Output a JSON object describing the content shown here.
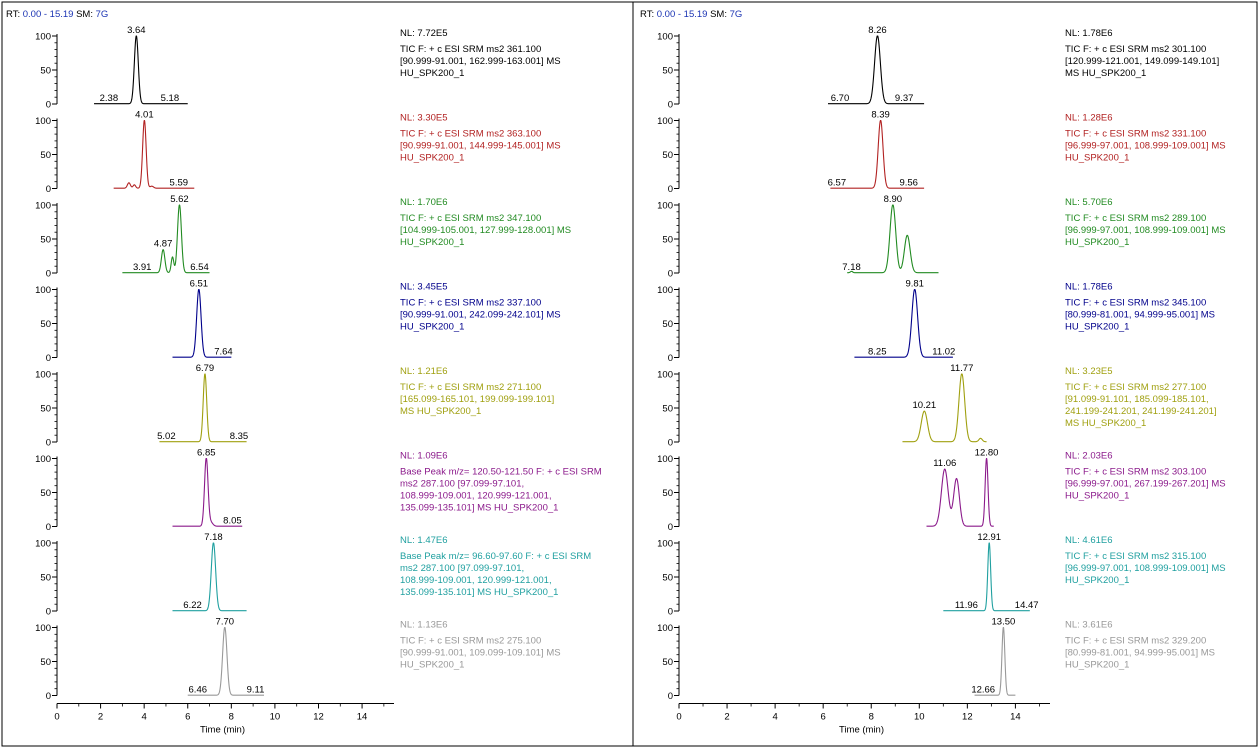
{
  "chart_data": [
    {
      "type": "line",
      "header": {
        "rt_label": "RT:",
        "rt_value": "0.00 - 15.19",
        "sm_label": "SM:",
        "sm_value": "7G"
      },
      "xlabel": "Time (min)",
      "xlim": [
        0,
        15.19
      ],
      "x_ticks": [
        "0",
        "2",
        "4",
        "6",
        "8",
        "10",
        "12",
        "14"
      ],
      "y_ticks": [
        "0",
        "50",
        "100"
      ],
      "ylim": [
        0,
        100
      ],
      "traces": [
        {
          "color": "#000000",
          "nl": "NL: 7.72E5",
          "info": [
            "TIC F: + c ESI SRM ms2 361.100",
            "[90.999-91.001, 162.999-163.001]  MS",
            "HU_SPK200_1"
          ],
          "range": [
            1.7,
            6.0
          ],
          "peaks": [
            {
              "rt": 3.64,
              "h": 100,
              "w": 0.09
            }
          ],
          "labels": [
            {
              "rt": 3.64,
              "text": "3.64"
            },
            {
              "rt": 2.38,
              "text": "2.38",
              "baseline": true
            },
            {
              "rt": 5.18,
              "text": "5.18",
              "baseline": true
            }
          ]
        },
        {
          "color": "#b22222",
          "nl": "NL: 3.30E5",
          "info": [
            "TIC F: + c ESI SRM ms2 363.100",
            "[90.999-91.001, 144.999-145.001]  MS",
            "HU_SPK200_1"
          ],
          "range": [
            2.6,
            6.3
          ],
          "peaks": [
            {
              "rt": 3.3,
              "h": 8,
              "w": 0.07
            },
            {
              "rt": 3.55,
              "h": 5,
              "w": 0.06
            },
            {
              "rt": 4.01,
              "h": 100,
              "w": 0.08
            },
            {
              "rt": 4.35,
              "h": 3,
              "w": 0.08
            }
          ],
          "labels": [
            {
              "rt": 4.01,
              "text": "4.01"
            },
            {
              "rt": 5.59,
              "text": "5.59",
              "baseline": true
            }
          ]
        },
        {
          "color": "#228b22",
          "nl": "NL: 1.70E6",
          "info": [
            "TIC F: + c ESI SRM ms2 347.100",
            "[104.999-105.001, 127.999-128.001]  MS",
            "HU_SPK200_1"
          ],
          "range": [
            3.0,
            7.0
          ],
          "peaks": [
            {
              "rt": 4.87,
              "h": 34,
              "w": 0.08
            },
            {
              "rt": 5.3,
              "h": 23,
              "w": 0.06
            },
            {
              "rt": 5.62,
              "h": 100,
              "w": 0.09
            }
          ],
          "labels": [
            {
              "rt": 5.62,
              "text": "5.62"
            },
            {
              "rt": 4.87,
              "text": "4.87"
            },
            {
              "rt": 3.91,
              "text": "3.91",
              "baseline": true
            },
            {
              "rt": 6.54,
              "text": "6.54",
              "baseline": true
            }
          ]
        },
        {
          "color": "#00008b",
          "nl": "NL: 3.45E5",
          "info": [
            "TIC F: + c ESI SRM ms2 337.100",
            "[90.999-91.001, 242.099-242.101]  MS",
            "HU_SPK200_1"
          ],
          "range": [
            5.3,
            8.0
          ],
          "peaks": [
            {
              "rt": 6.51,
              "h": 100,
              "w": 0.1
            }
          ],
          "labels": [
            {
              "rt": 6.51,
              "text": "6.51"
            },
            {
              "rt": 7.64,
              "text": "7.64",
              "baseline": true
            }
          ]
        },
        {
          "color": "#a0a010",
          "nl": "NL: 1.21E6",
          "info": [
            "TIC F: + c ESI SRM ms2 271.100",
            "[165.099-165.101, 199.099-199.101]",
            "MS HU_SPK200_1"
          ],
          "range": [
            4.7,
            8.7
          ],
          "peaks": [
            {
              "rt": 6.79,
              "h": 100,
              "w": 0.08
            }
          ],
          "labels": [
            {
              "rt": 6.79,
              "text": "6.79"
            },
            {
              "rt": 5.02,
              "text": "5.02",
              "baseline": true
            },
            {
              "rt": 8.35,
              "text": "8.35",
              "baseline": true
            }
          ]
        },
        {
          "color": "#8b1a8b",
          "nl": "NL: 1.09E6",
          "info": [
            "Base Peak m/z= 120.50-121.50 F: + c ESI SRM",
            "ms2 287.100 [97.099-97.101,",
            "108.999-109.001, 120.999-121.001,",
            "135.099-135.101]  MS HU_SPK200_1"
          ],
          "range": [
            5.3,
            8.5
          ],
          "peaks": [
            {
              "rt": 6.85,
              "h": 100,
              "w": 0.08
            },
            {
              "rt": 7.05,
              "h": 6,
              "w": 0.1
            }
          ],
          "labels": [
            {
              "rt": 6.85,
              "text": "6.85"
            },
            {
              "rt": 8.05,
              "text": "8.05",
              "baseline": true
            }
          ]
        },
        {
          "color": "#20a0a0",
          "nl": "NL: 1.47E6",
          "info": [
            "Base Peak m/z= 96.60-97.60 F: + c ESI SRM",
            "ms2 287.100 [97.099-97.101,",
            "108.999-109.001, 120.999-121.001,",
            "135.099-135.101]  MS HU_SPK200_1"
          ],
          "range": [
            5.3,
            8.7
          ],
          "peaks": [
            {
              "rt": 7.18,
              "h": 100,
              "w": 0.1
            }
          ],
          "labels": [
            {
              "rt": 7.18,
              "text": "7.18"
            },
            {
              "rt": 6.22,
              "text": "6.22",
              "baseline": true
            }
          ]
        },
        {
          "color": "#999999",
          "nl": "NL: 1.13E6",
          "info": [
            "TIC F: + c ESI SRM ms2 275.100",
            "[90.999-91.001, 109.099-109.101]  MS",
            "HU_SPK200_1"
          ],
          "range": [
            6.0,
            9.5
          ],
          "peaks": [
            {
              "rt": 7.7,
              "h": 100,
              "w": 0.1
            }
          ],
          "labels": [
            {
              "rt": 7.7,
              "text": "7.70"
            },
            {
              "rt": 6.46,
              "text": "6.46",
              "baseline": true
            },
            {
              "rt": 9.11,
              "text": "9.11",
              "baseline": true
            }
          ]
        }
      ]
    },
    {
      "type": "line",
      "header": {
        "rt_label": "RT:",
        "rt_value": "0.00 - 15.19",
        "sm_label": "SM:",
        "sm_value": "7G"
      },
      "xlabel": "Time (min)",
      "xlim": [
        0,
        15.19
      ],
      "x_ticks": [
        "0",
        "2",
        "4",
        "6",
        "8",
        "10",
        "12",
        "14"
      ],
      "y_ticks": [
        "0",
        "50",
        "100"
      ],
      "ylim": [
        0,
        100
      ],
      "traces": [
        {
          "color": "#000000",
          "nl": "NL: 1.78E6",
          "info": [
            "TIC F: + c ESI SRM ms2 301.100",
            "[120.999-121.001, 149.099-149.101]",
            "MS HU_SPK200_1"
          ],
          "range": [
            6.2,
            10.2
          ],
          "peaks": [
            {
              "rt": 8.26,
              "h": 100,
              "w": 0.12
            }
          ],
          "labels": [
            {
              "rt": 8.26,
              "text": "8.26"
            },
            {
              "rt": 6.7,
              "text": "6.70",
              "baseline": true
            },
            {
              "rt": 9.37,
              "text": "9.37",
              "baseline": true
            }
          ]
        },
        {
          "color": "#b22222",
          "nl": "NL: 1.28E6",
          "info": [
            "TIC F: + c ESI SRM ms2 331.100",
            "[96.999-97.001, 108.999-109.001]  MS",
            "HU_SPK200_1"
          ],
          "range": [
            6.3,
            10.2
          ],
          "peaks": [
            {
              "rt": 8.39,
              "h": 100,
              "w": 0.1
            }
          ],
          "labels": [
            {
              "rt": 8.39,
              "text": "8.39"
            },
            {
              "rt": 6.57,
              "text": "6.57",
              "baseline": true
            },
            {
              "rt": 9.56,
              "text": "9.56",
              "baseline": true
            }
          ]
        },
        {
          "color": "#228b22",
          "nl": "NL: 5.70E6",
          "info": [
            "TIC F: + c ESI SRM ms2 289.100",
            "[96.999-97.001, 108.999-109.001]  MS",
            "HU_SPK200_1"
          ],
          "range": [
            7.0,
            10.8
          ],
          "peaks": [
            {
              "rt": 8.9,
              "h": 100,
              "w": 0.12
            },
            {
              "rt": 9.5,
              "h": 55,
              "w": 0.12
            },
            {
              "rt": 7.18,
              "h": 2,
              "w": 0.05
            }
          ],
          "labels": [
            {
              "rt": 8.9,
              "text": "8.90"
            },
            {
              "rt": 7.18,
              "text": "7.18",
              "baseline": true
            }
          ]
        },
        {
          "color": "#00008b",
          "nl": "NL: 1.78E6",
          "info": [
            "TIC F: + c ESI SRM ms2 345.100",
            "[80.999-81.001, 94.999-95.001]  MS",
            "HU_SPK200_1"
          ],
          "range": [
            7.3,
            11.4
          ],
          "peaks": [
            {
              "rt": 9.81,
              "h": 100,
              "w": 0.12
            }
          ],
          "labels": [
            {
              "rt": 9.81,
              "text": "9.81"
            },
            {
              "rt": 8.25,
              "text": "8.25",
              "baseline": true
            },
            {
              "rt": 11.02,
              "text": "11.02",
              "baseline": true
            }
          ]
        },
        {
          "color": "#a0a010",
          "nl": "NL: 3.23E5",
          "info": [
            "TIC F: + c ESI SRM ms2 277.100",
            "[91.099-91.101, 185.099-185.101,",
            "241.199-241.201, 241.199-241.201]",
            "MS HU_SPK200_1"
          ],
          "range": [
            9.3,
            12.8
          ],
          "peaks": [
            {
              "rt": 10.21,
              "h": 45,
              "w": 0.13
            },
            {
              "rt": 11.77,
              "h": 100,
              "w": 0.12
            },
            {
              "rt": 12.55,
              "h": 5,
              "w": 0.07
            }
          ],
          "labels": [
            {
              "rt": 11.77,
              "text": "11.77"
            },
            {
              "rt": 10.21,
              "text": "10.21"
            }
          ]
        },
        {
          "color": "#8b1a8b",
          "nl": "NL: 2.03E6",
          "info": [
            "TIC F: + c ESI SRM ms2 303.100",
            "[96.999-97.001, 267.199-267.201]  MS",
            "HU_SPK200_1"
          ],
          "range": [
            10.3,
            13.1
          ],
          "peaks": [
            {
              "rt": 11.06,
              "h": 84,
              "w": 0.14
            },
            {
              "rt": 11.55,
              "h": 70,
              "w": 0.12
            },
            {
              "rt": 12.8,
              "h": 100,
              "w": 0.06
            }
          ],
          "labels": [
            {
              "rt": 12.8,
              "text": "12.80"
            },
            {
              "rt": 11.06,
              "text": "11.06"
            }
          ]
        },
        {
          "color": "#20a0a0",
          "nl": "NL: 4.61E6",
          "info": [
            "TIC F: + c ESI SRM ms2 315.100",
            "[96.999-97.001, 108.999-109.001]  MS",
            "HU_SPK200_1"
          ],
          "range": [
            11.0,
            14.6
          ],
          "peaks": [
            {
              "rt": 12.91,
              "h": 100,
              "w": 0.06
            }
          ],
          "labels": [
            {
              "rt": 12.91,
              "text": "12.91"
            },
            {
              "rt": 11.96,
              "text": "11.96",
              "baseline": true
            },
            {
              "rt": 14.47,
              "text": "14.47",
              "baseline": true
            }
          ]
        },
        {
          "color": "#999999",
          "nl": "NL: 3.61E6",
          "info": [
            "TIC F: + c ESI SRM ms2 329.200",
            "[80.999-81.001, 94.999-95.001]  MS",
            "HU_SPK200_1"
          ],
          "range": [
            12.3,
            14.0
          ],
          "peaks": [
            {
              "rt": 13.5,
              "h": 100,
              "w": 0.06
            }
          ],
          "labels": [
            {
              "rt": 13.5,
              "text": "13.50"
            },
            {
              "rt": 12.66,
              "text": "12.66",
              "baseline": true
            }
          ]
        }
      ]
    }
  ]
}
